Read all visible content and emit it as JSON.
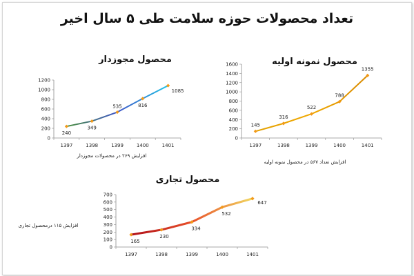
{
  "page": {
    "title": "تعداد محصولات حوزه سلامت طی ۵ سال اخیر"
  },
  "chart_data": [
    {
      "id": "licensed",
      "type": "line",
      "title": "محصول مجوزدار",
      "note": "افزایش ۲۶۹ در محصولات مجوزدار",
      "categories": [
        "1397",
        "1398",
        "1399",
        "1400",
        "1401"
      ],
      "values": [
        240,
        349,
        535,
        816,
        1085
      ],
      "ylim": [
        0,
        1200
      ],
      "yticks": [
        0,
        200,
        400,
        600,
        800,
        1000,
        1200
      ],
      "grid": false,
      "colors": {
        "start": "#4a8f3c",
        "mid": "#4056c8",
        "end": "#22c4e6",
        "marker": "#f29a1a"
      }
    },
    {
      "id": "prototype",
      "type": "line",
      "title": "محصول نمونه اولیه",
      "note": "افزایش تعداد ۵۶۷ در محصول نمونه اولیه",
      "categories": [
        "1397",
        "1398",
        "1399",
        "1400",
        "1401"
      ],
      "values": [
        145,
        316,
        522,
        788,
        1355
      ],
      "ylim": [
        0,
        1600
      ],
      "yticks": [
        0,
        200,
        400,
        600,
        800,
        1000,
        1200,
        1400,
        1600
      ],
      "grid": false,
      "colors": {
        "start": "#e3a000",
        "mid": "#f0a800",
        "end": "#d88a00",
        "marker": "#f29a1a"
      }
    },
    {
      "id": "commercial",
      "type": "line",
      "title": "محصول تجاری",
      "note": "افزایش ۱۱۵ درمحصول تجاری",
      "categories": [
        "1397",
        "1398",
        "1399",
        "1400",
        "1401"
      ],
      "values": [
        165,
        230,
        334,
        532,
        647
      ],
      "ylim": [
        0,
        700
      ],
      "yticks": [
        0,
        100,
        200,
        300,
        400,
        500,
        600,
        700
      ],
      "grid": false,
      "colors": {
        "start": "#b0101a",
        "mid": "#e8502a",
        "end": "#f2d860",
        "marker": "#f29a1a"
      }
    }
  ]
}
